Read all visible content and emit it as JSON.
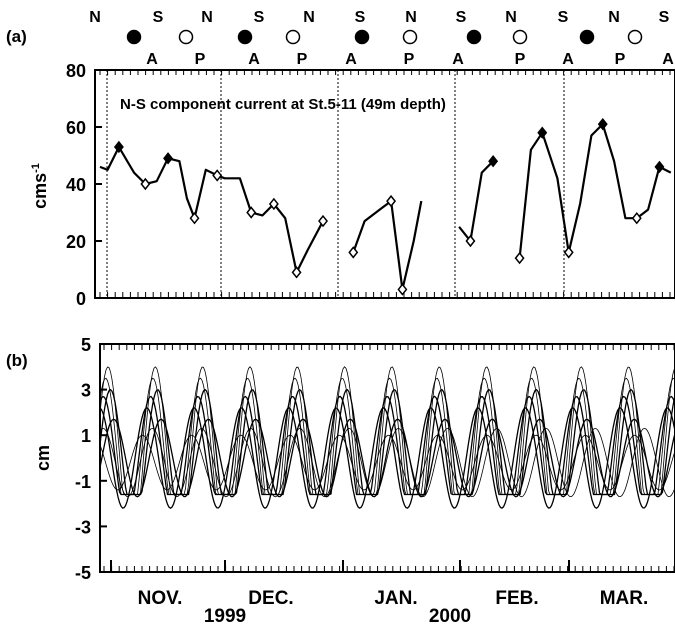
{
  "chart_data": [
    {
      "panel_label": "(a)",
      "type": "line",
      "title": "N-S component current at St.5-11 (49m depth)",
      "ylabel": "cms",
      "ylabel_superscript": "-1",
      "ylim": [
        0,
        80
      ],
      "yticks": [
        0,
        20,
        40,
        60,
        80
      ],
      "grid": false,
      "moon_phase_row": {
        "top_labels": [
          "N",
          "S",
          "N",
          "S",
          "N",
          "S",
          "N",
          "S",
          "N",
          "S",
          "N",
          "S"
        ],
        "bottom_labels": [
          "A",
          "P",
          "A",
          "P",
          "A",
          "P",
          "A",
          "P",
          "A",
          "P",
          "A"
        ],
        "symbols": [
          "new-moon",
          "full-moon",
          "new-moon",
          "full-moon",
          "new-moon",
          "full-moon",
          "new-moon",
          "full-moon",
          "new-moon",
          "full-moon"
        ]
      },
      "series": [
        {
          "points": [
            [
              0,
              46
            ],
            [
              2,
              45
            ],
            [
              5,
              53
            ],
            [
              9,
              44
            ],
            [
              12,
              40
            ],
            [
              15,
              41
            ],
            [
              18,
              49
            ],
            [
              21,
              48
            ],
            [
              23,
              35
            ],
            [
              25,
              28
            ],
            [
              28,
              45
            ],
            [
              31,
              43
            ]
          ],
          "markers": [
            [
              5,
              53
            ],
            [
              12,
              40
            ],
            [
              18,
              49
            ],
            [
              25,
              28
            ]
          ]
        },
        {
          "points": [
            [
              31,
              43
            ],
            [
              33,
              42
            ],
            [
              37,
              42
            ],
            [
              40,
              30
            ],
            [
              43,
              29
            ],
            [
              46,
              33
            ],
            [
              49,
              28
            ],
            [
              52,
              9
            ],
            [
              55,
              17
            ],
            [
              59,
              27
            ]
          ],
          "markers": [
            [
              31,
              43
            ],
            [
              40,
              30
            ],
            [
              46,
              33
            ],
            [
              52,
              9
            ],
            [
              59,
              27
            ]
          ]
        },
        {
          "points": [
            [
              67,
              16
            ],
            [
              70,
              27
            ],
            [
              74,
              31
            ],
            [
              77,
              34
            ],
            [
              80,
              3
            ],
            [
              83,
              20
            ],
            [
              85,
              34
            ]
          ],
          "markers": [
            [
              67,
              16
            ],
            [
              77,
              34
            ],
            [
              80,
              3
            ]
          ]
        },
        {
          "points": [
            [
              95,
              25
            ],
            [
              98,
              20
            ],
            [
              101,
              44
            ],
            [
              104,
              48
            ]
          ],
          "markers": [
            [
              98,
              20
            ],
            [
              104,
              48
            ]
          ]
        },
        {
          "points": [
            [
              111,
              14
            ],
            [
              114,
              52
            ],
            [
              117,
              58
            ],
            [
              121,
              42
            ],
            [
              124,
              16
            ],
            [
              127,
              33
            ],
            [
              130,
              57
            ],
            [
              133,
              61
            ],
            [
              136,
              48
            ],
            [
              139,
              28
            ],
            [
              142,
              28
            ],
            [
              145,
              31
            ],
            [
              148,
              46
            ],
            [
              151,
              44
            ]
          ],
          "markers": [
            [
              111,
              14
            ],
            [
              117,
              58
            ],
            [
              124,
              16
            ],
            [
              133,
              61
            ],
            [
              142,
              28
            ],
            [
              148,
              46
            ]
          ]
        }
      ]
    },
    {
      "panel_label": "(b)",
      "type": "line",
      "ylabel": "cm",
      "ylim": [
        -5,
        5
      ],
      "yticks": [
        -5,
        -3,
        -1,
        1,
        3,
        5
      ],
      "grid": false,
      "months": [
        "NOV.",
        "DEC.",
        "JAN.",
        "FEB.",
        "MAR."
      ],
      "years": [
        "1999",
        "2000"
      ],
      "curves": {
        "cycles": 12.15,
        "amplitudes": [
          4.0,
          3.5,
          3.0,
          2.7,
          2.2,
          1.7
        ],
        "phases": [
          0,
          0.05,
          -0.05,
          0.1,
          0.18,
          -0.12
        ],
        "note_omitted": true
      },
      "flat_level": -1.6
    }
  ]
}
